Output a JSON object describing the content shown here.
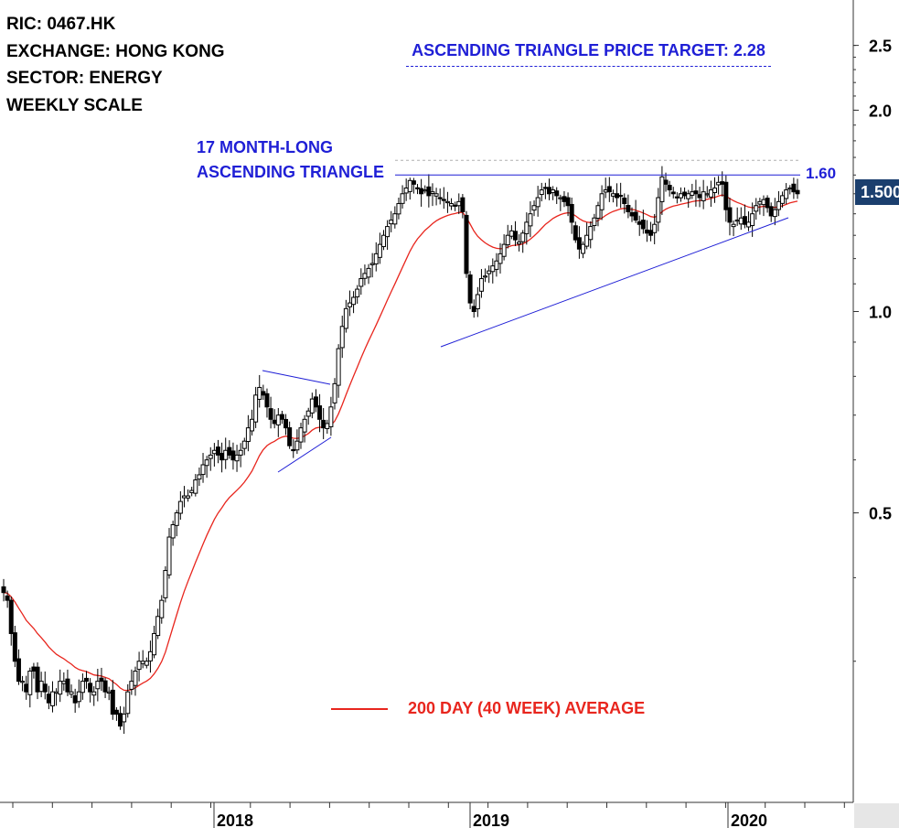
{
  "header": {
    "ric": "RIC: 0467.HK",
    "exchange": "EXCHANGE: HONG KONG",
    "sector": "SECTOR: ENERGY",
    "scale": "WEEKLY SCALE"
  },
  "annotations": {
    "target": "ASCENDING TRIANGLE PRICE TARGET: 2.28",
    "triangle_line1": "17 MONTH-LONG",
    "triangle_line2": "ASCENDING TRIANGLE",
    "resistance_label": "1.60",
    "legend": "200 DAY (40 WEEK) AVERAGE",
    "last_price": "1.500"
  },
  "colors": {
    "candle": "#000000",
    "moving_average": "#e8261e",
    "trendline": "#1f1fd6",
    "price_tag": "#1b3f6e"
  },
  "chart_data": {
    "type": "candlestick",
    "scale": "log",
    "y_ticks": [
      0.5,
      1.0,
      2.0,
      2.5
    ],
    "y_tick_labels": [
      "0.5",
      "1.0",
      "2.0",
      "2.5"
    ],
    "x_ticks": [
      "2018",
      "2019",
      "2020"
    ],
    "resistance": 1.6,
    "price_target": 2.28,
    "last_price": 1.5,
    "close": [
      0.38,
      0.37,
      0.33,
      0.3,
      0.28,
      0.28,
      0.27,
      0.29,
      0.29,
      0.27,
      0.28,
      0.27,
      0.26,
      0.27,
      0.27,
      0.28,
      0.28,
      0.27,
      0.27,
      0.26,
      0.27,
      0.28,
      0.28,
      0.27,
      0.27,
      0.28,
      0.28,
      0.27,
      0.27,
      0.25,
      0.25,
      0.24,
      0.25,
      0.27,
      0.28,
      0.29,
      0.3,
      0.3,
      0.3,
      0.31,
      0.33,
      0.35,
      0.37,
      0.41,
      0.46,
      0.48,
      0.5,
      0.52,
      0.53,
      0.53,
      0.54,
      0.56,
      0.57,
      0.59,
      0.6,
      0.61,
      0.62,
      0.61,
      0.6,
      0.62,
      0.61,
      0.6,
      0.61,
      0.62,
      0.64,
      0.67,
      0.69,
      0.75,
      0.77,
      0.75,
      0.72,
      0.69,
      0.68,
      0.7,
      0.69,
      0.67,
      0.63,
      0.62,
      0.64,
      0.67,
      0.69,
      0.71,
      0.74,
      0.72,
      0.69,
      0.67,
      0.68,
      0.72,
      0.78,
      0.88,
      0.95,
      1.01,
      1.03,
      1.05,
      1.08,
      1.12,
      1.14,
      1.16,
      1.18,
      1.22,
      1.26,
      1.3,
      1.34,
      1.37,
      1.4,
      1.45,
      1.5,
      1.53,
      1.57,
      1.55,
      1.53,
      1.5,
      1.52,
      1.49,
      1.51,
      1.5,
      1.48,
      1.47,
      1.46,
      1.45,
      1.44,
      1.46,
      1.41,
      1.14,
      1.03,
      1.0,
      1.06,
      1.12,
      1.13,
      1.15,
      1.17,
      1.19,
      1.22,
      1.26,
      1.3,
      1.32,
      1.28,
      1.27,
      1.31,
      1.36,
      1.4,
      1.44,
      1.48,
      1.52,
      1.53,
      1.5,
      1.52,
      1.49,
      1.48,
      1.46,
      1.44,
      1.36,
      1.28,
      1.24,
      1.26,
      1.3,
      1.34,
      1.38,
      1.44,
      1.5,
      1.52,
      1.51,
      1.5,
      1.48,
      1.49,
      1.45,
      1.41,
      1.39,
      1.37,
      1.35,
      1.33,
      1.31,
      1.3,
      1.35,
      1.48,
      1.59,
      1.55,
      1.52,
      1.5,
      1.48,
      1.5,
      1.49,
      1.5,
      1.51,
      1.5,
      1.48,
      1.51,
      1.5,
      1.52,
      1.53,
      1.56,
      1.55,
      1.42,
      1.36,
      1.35,
      1.37,
      1.38,
      1.35,
      1.36,
      1.4,
      1.44,
      1.46,
      1.47,
      1.43,
      1.39,
      1.42,
      1.46,
      1.49,
      1.52,
      1.53,
      1.51,
      1.5
    ]
  }
}
